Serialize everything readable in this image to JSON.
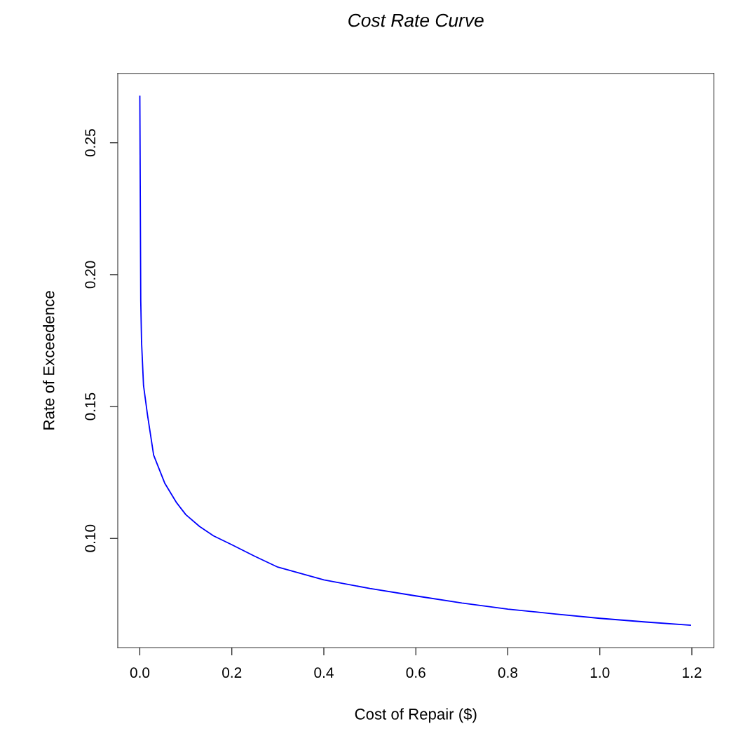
{
  "chart_data": {
    "type": "line",
    "title": "Cost Rate Curve",
    "xlabel": "Cost of Repair ($)",
    "ylabel": "Rate of Exceedence",
    "x": [
      0,
      0.002,
      0.0037,
      0.008,
      0.0165,
      0.03,
      0.054,
      0.08,
      0.1,
      0.13,
      0.16,
      0.2,
      0.25,
      0.3,
      0.4,
      0.5,
      0.6,
      0.7,
      0.8,
      0.9,
      1.0,
      1.1,
      1.197
    ],
    "series": [
      {
        "color": "#0000ff",
        "values": [
          0.2676,
          0.19,
          0.1746,
          0.158,
          0.147,
          0.1316,
          0.121,
          0.1135,
          0.109,
          0.1045,
          0.101,
          0.0976,
          0.0932,
          0.0891,
          0.0843,
          0.081,
          0.0782,
          0.0755,
          0.0732,
          0.0714,
          0.0697,
          0.0683,
          0.0671
        ]
      }
    ],
    "xlim": [
      -0.048,
      1.248
    ],
    "ylim": [
      0.0586,
      0.2763
    ],
    "xticks": [
      {
        "value": 0,
        "label": "0.0"
      },
      0.2,
      0.4,
      0.6,
      0.8,
      {
        "value": 1,
        "label": "1.0"
      },
      1.2
    ],
    "yticks": [
      {
        "value": 0.1,
        "label": "0.10"
      },
      0.15,
      {
        "value": 0.2,
        "label": "0.20"
      },
      0.25
    ],
    "grid": false,
    "legend": false,
    "marker": "none",
    "line_style": "solid"
  }
}
